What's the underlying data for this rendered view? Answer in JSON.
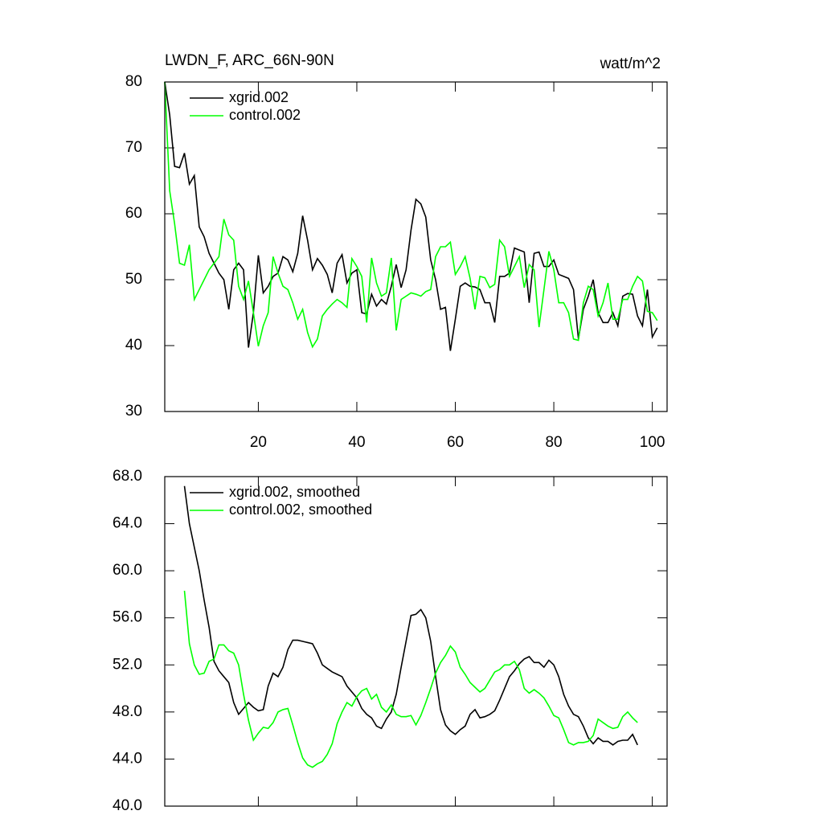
{
  "chart_data": [
    {
      "type": "line",
      "title": "LWDN_F, ARC_66N-90N",
      "subtitle": "watt/m^2",
      "x": [
        1,
        2,
        3,
        4,
        5,
        6,
        7,
        8,
        9,
        10,
        11,
        12,
        13,
        14,
        15,
        16,
        17,
        18,
        19,
        20,
        21,
        22,
        23,
        24,
        25,
        26,
        27,
        28,
        29,
        30,
        31,
        32,
        33,
        34,
        35,
        36,
        37,
        38,
        39,
        40,
        41,
        42,
        43,
        44,
        45,
        46,
        47,
        48,
        49,
        50,
        51,
        52,
        53,
        54,
        55,
        56,
        57,
        58,
        59,
        60,
        61,
        62,
        63,
        64,
        65,
        66,
        67,
        68,
        69,
        70,
        71,
        72,
        73,
        74,
        75,
        76,
        77,
        78,
        79,
        80,
        81,
        82,
        83,
        84,
        85,
        86,
        87,
        88,
        89,
        90,
        91,
        92,
        93,
        94,
        95,
        96,
        97,
        98,
        99,
        100,
        101
      ],
      "series": [
        {
          "name": "xgrid.002",
          "color": "#000000",
          "values": [
            80,
            75,
            67.2,
            67,
            69.2,
            64.5,
            65.8,
            58,
            56.5,
            54,
            52.5,
            51,
            50,
            45.5,
            51.5,
            52.5,
            51.5,
            39.7,
            45,
            53.7,
            48,
            49,
            50.5,
            51,
            53.5,
            53,
            51.2,
            54,
            59.7,
            56,
            51.5,
            53.2,
            52.2,
            50.8,
            48,
            52.5,
            53.8,
            49.5,
            51,
            51.5,
            45,
            44.8,
            47.8,
            46,
            47,
            46.3,
            49,
            52.3,
            48.8,
            51.5,
            57.5,
            62.2,
            61.5,
            59.5,
            53,
            50,
            45.5,
            45.8,
            39.2,
            44,
            49,
            49.5,
            49,
            48.9,
            48.5,
            46.5,
            46.5,
            43.5,
            50.5,
            50.5,
            51,
            54.8,
            54.5,
            54.2,
            46.5,
            54,
            54.2,
            52,
            52,
            53,
            50.8,
            50.5,
            50.2,
            48.5,
            41,
            45.5,
            47.5,
            50,
            45,
            43.5,
            43.5,
            45,
            43,
            47.5,
            47.9,
            47.8,
            44.5,
            43,
            48.5,
            41.3,
            42.7
          ]
        },
        {
          "name": "control.002",
          "color": "#00ff00",
          "values": [
            80,
            63.5,
            58.5,
            52.5,
            52.2,
            55.3,
            47,
            48.5,
            50,
            51.5,
            52.5,
            53.5,
            59.2,
            56.8,
            56,
            49,
            47,
            49.8,
            45,
            39.9,
            43,
            45,
            53.5,
            51,
            49,
            48.5,
            46.5,
            44,
            45.5,
            42,
            39.8,
            41,
            44.5,
            45.5,
            46.3,
            47,
            46.5,
            45.8,
            53.2,
            52,
            50.5,
            43.5,
            53.3,
            49.5,
            47.5,
            48,
            53.3,
            42.3,
            47,
            47.5,
            48,
            47.8,
            47.5,
            48.2,
            48.5,
            53.5,
            55,
            55,
            55.7,
            50.8,
            52,
            53.5,
            50.2,
            45.5,
            50.5,
            50.3,
            48.8,
            49.3,
            56,
            55,
            50.5,
            52,
            53.5,
            48.8,
            52.3,
            51.5,
            42.8,
            48.5,
            54.3,
            51.5,
            46.5,
            46.5,
            45,
            41,
            40.8,
            46.5,
            49,
            48.5,
            44.5,
            46.5,
            49.5,
            44,
            44,
            47,
            47,
            49,
            50.5,
            49.8,
            45.2,
            45,
            43.8
          ]
        }
      ],
      "xlim": [
        1,
        103
      ],
      "xticks": [
        20,
        40,
        60,
        80,
        100
      ],
      "show_xtick_labels": true,
      "ylim": [
        30,
        80
      ],
      "yticks": [
        30,
        40,
        50,
        60,
        70,
        80
      ],
      "legend": "top-left"
    },
    {
      "type": "line",
      "x": [
        5,
        6,
        7,
        8,
        9,
        10,
        11,
        12,
        13,
        14,
        15,
        16,
        17,
        18,
        19,
        20,
        21,
        22,
        23,
        24,
        25,
        26,
        27,
        28,
        29,
        30,
        31,
        32,
        33,
        34,
        35,
        36,
        37,
        38,
        39,
        40,
        41,
        42,
        43,
        44,
        45,
        46,
        47,
        48,
        49,
        50,
        51,
        52,
        53,
        54,
        55,
        56,
        57,
        58,
        59,
        60,
        61,
        62,
        63,
        64,
        65,
        66,
        67,
        68,
        69,
        70,
        71,
        72,
        73,
        74,
        75,
        76,
        77,
        78,
        79,
        80,
        81,
        82,
        83,
        84,
        85,
        86,
        87,
        88,
        89,
        90,
        91,
        92,
        93,
        94,
        95,
        96,
        97
      ],
      "series": [
        {
          "name": "xgrid.002, smoothed",
          "color": "#000000",
          "values": [
            67.2,
            64,
            62,
            60,
            57.5,
            55.2,
            52.3,
            51.5,
            51,
            50.5,
            48.8,
            47.8,
            48.3,
            48.8,
            48.4,
            48.1,
            48.2,
            50.2,
            51.3,
            51,
            51.8,
            53.3,
            54.1,
            54.1,
            54,
            53.9,
            53.8,
            53,
            52,
            51.7,
            51.4,
            51.2,
            51,
            50.2,
            49.7,
            49.2,
            48.3,
            47.8,
            47.5,
            46.8,
            46.6,
            47.4,
            48,
            49.5,
            51.8,
            54,
            56.2,
            56.3,
            56.7,
            56,
            54,
            51,
            48.2,
            46.9,
            46.4,
            46.1,
            46.5,
            46.8,
            47.8,
            48.2,
            47.5,
            47.6,
            47.8,
            48.1,
            49,
            50,
            51,
            51.5,
            52.1,
            52.5,
            52.7,
            52.2,
            52.2,
            51.8,
            52.4,
            52,
            51,
            49.5,
            48.5,
            47.8,
            47.6,
            46.8,
            45.8,
            45.3,
            45.8,
            45.5,
            45.5,
            45.2,
            45.5,
            45.6,
            45.6,
            46.1,
            45.2
          ]
        },
        {
          "name": "control.002, smoothed",
          "color": "#00ff00",
          "values": [
            58.3,
            53.8,
            52,
            51.2,
            51.3,
            52.3,
            52.5,
            53.7,
            53.7,
            53.2,
            53,
            52,
            49.5,
            47.3,
            45.6,
            46.2,
            46.7,
            46.6,
            47.1,
            48,
            48.2,
            48.3,
            46.9,
            45.4,
            44.1,
            43.5,
            43.3,
            43.6,
            43.8,
            44.4,
            45.3,
            47,
            48,
            48.8,
            48.5,
            49.3,
            49.8,
            50,
            49.1,
            49.5,
            48.4,
            48,
            48.6,
            47.8,
            47.6,
            47.6,
            47.7,
            46.9,
            47.7,
            48.8,
            50,
            51.3,
            52.2,
            52.8,
            53.6,
            53.1,
            51.8,
            51.2,
            50.5,
            50.1,
            49.7,
            50,
            50.7,
            51.4,
            51.6,
            52,
            52,
            52.3,
            51.6,
            50,
            49.6,
            49.9,
            49.6,
            49.2,
            48.5,
            47.7,
            47.5,
            46.5,
            45.4,
            45.2,
            45.4,
            45.4,
            45.5,
            46,
            47.4,
            47.1,
            46.8,
            46.6,
            46.7,
            47.6,
            48,
            47.5,
            47.1
          ]
        }
      ],
      "xlim": [
        1,
        103
      ],
      "xticks": [
        20,
        40,
        60,
        80,
        100
      ],
      "show_xtick_labels": false,
      "ylim": [
        40,
        68
      ],
      "yticks": [
        {
          "value": 40,
          "label": "40.0"
        },
        {
          "value": 44,
          "label": "44.0"
        },
        {
          "value": 48,
          "label": "48.0"
        },
        {
          "value": 52,
          "label": "52.0"
        },
        {
          "value": 56,
          "label": "56.0"
        },
        {
          "value": 60,
          "label": "60.0"
        },
        {
          "value": 64,
          "label": "64.0"
        },
        {
          "value": 68,
          "label": "68.0"
        }
      ],
      "legend": "top-left"
    }
  ]
}
